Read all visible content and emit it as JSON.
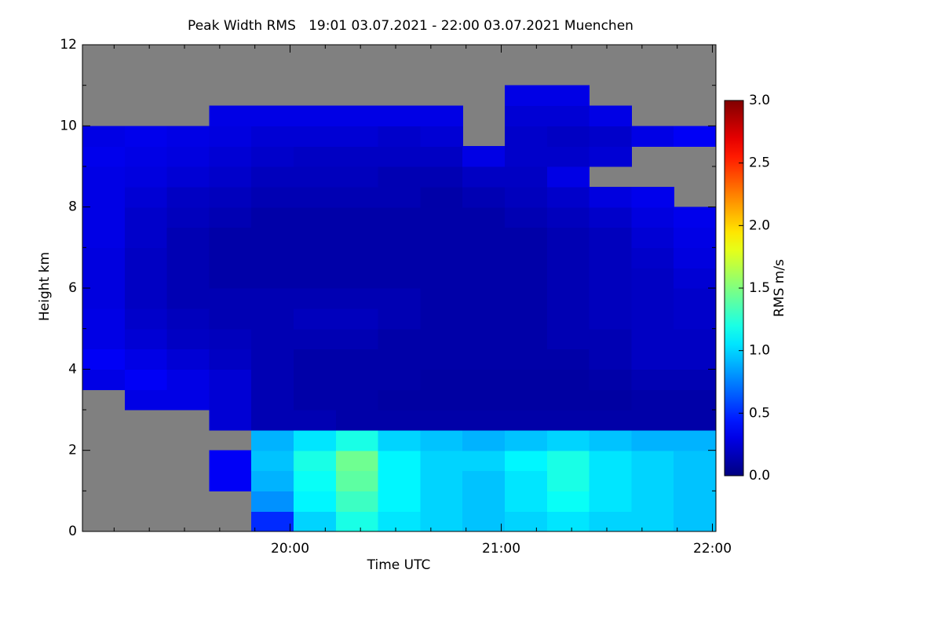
{
  "chart_data": {
    "type": "heatmap",
    "title": "Peak Width RMS   19:01 03.07.2021 - 22:00 03.07.2021 Muenchen",
    "x_label": "Time UTC",
    "y_label": "Height km",
    "colorbar_label": "RMS m/s",
    "colormap": "jet",
    "missing_color": "#808080",
    "xlim": [
      1,
      181
    ],
    "ylim": [
      0,
      12
    ],
    "xticks": [
      {
        "value": 60,
        "label": "20:00"
      },
      {
        "value": 120,
        "label": "21:00"
      },
      {
        "value": 180,
        "label": "22:00"
      }
    ],
    "xminorticks": [
      10,
      20,
      30,
      40,
      50,
      70,
      80,
      90,
      100,
      110,
      130,
      140,
      150,
      160,
      170
    ],
    "yticks": [
      0,
      2,
      4,
      6,
      8,
      10,
      12
    ],
    "yminorticks": [
      1,
      3,
      5,
      7,
      9,
      11
    ],
    "clim": [
      0,
      3
    ],
    "cticks": [
      {
        "value": 0,
        "label": "0.0"
      },
      {
        "value": 0.5,
        "label": "0.5"
      },
      {
        "value": 1,
        "label": "1.0"
      },
      {
        "value": 1.5,
        "label": "1.5"
      },
      {
        "value": 2,
        "label": "2.0"
      },
      {
        "value": 2.5,
        "label": "2.5"
      },
      {
        "value": 3,
        "label": "3.0"
      }
    ],
    "x_edges": [
      1,
      13,
      25,
      37,
      49,
      61,
      73,
      85,
      97,
      109,
      121,
      133,
      145,
      157,
      169,
      181
    ],
    "y_edges": [
      0,
      0.5,
      1,
      1.5,
      2,
      2.5,
      3,
      3.5,
      4,
      4.5,
      5,
      5.5,
      6,
      6.5,
      7,
      7.5,
      8,
      8.5,
      9,
      9.5,
      10,
      10.5,
      11,
      11.5,
      12
    ],
    "z": [
      [
        null,
        null,
        null,
        null,
        0.5,
        1.0,
        1.2,
        1.05,
        1.0,
        0.95,
        1.0,
        1.05,
        1.0,
        1.0,
        0.95
      ],
      [
        null,
        null,
        null,
        null,
        0.8,
        1.1,
        1.3,
        1.1,
        1.0,
        0.95,
        1.05,
        1.15,
        1.05,
        1.0,
        0.95
      ],
      [
        null,
        null,
        null,
        0.35,
        0.9,
        1.15,
        1.4,
        1.1,
        1.0,
        0.95,
        1.05,
        1.2,
        1.05,
        1.0,
        0.95
      ],
      [
        null,
        null,
        null,
        0.35,
        0.95,
        1.2,
        1.45,
        1.1,
        1.0,
        1.0,
        1.1,
        1.2,
        1.05,
        1.0,
        0.95
      ],
      [
        null,
        null,
        null,
        null,
        0.9,
        1.05,
        1.2,
        1.0,
        0.95,
        0.9,
        0.95,
        1.0,
        0.95,
        0.9,
        0.9
      ],
      [
        null,
        null,
        null,
        0.25,
        0.15,
        0.15,
        0.12,
        0.12,
        0.12,
        0.12,
        0.12,
        0.12,
        0.12,
        0.12,
        0.12
      ],
      [
        null,
        0.3,
        0.3,
        0.25,
        0.15,
        0.12,
        0.12,
        0.1,
        0.1,
        0.1,
        0.1,
        0.1,
        0.1,
        0.12,
        0.12
      ],
      [
        0.3,
        0.35,
        0.3,
        0.25,
        0.15,
        0.12,
        0.12,
        0.12,
        0.1,
        0.1,
        0.1,
        0.1,
        0.12,
        0.15,
        0.15
      ],
      [
        0.35,
        0.3,
        0.25,
        0.2,
        0.15,
        0.12,
        0.12,
        0.12,
        0.12,
        0.12,
        0.12,
        0.12,
        0.15,
        0.2,
        0.2
      ],
      [
        0.3,
        0.25,
        0.2,
        0.18,
        0.15,
        0.15,
        0.15,
        0.12,
        0.12,
        0.12,
        0.12,
        0.15,
        0.15,
        0.2,
        0.2
      ],
      [
        0.3,
        0.22,
        0.18,
        0.15,
        0.15,
        0.18,
        0.18,
        0.15,
        0.12,
        0.12,
        0.12,
        0.15,
        0.18,
        0.2,
        0.22
      ],
      [
        0.28,
        0.2,
        0.15,
        0.15,
        0.15,
        0.15,
        0.15,
        0.15,
        0.12,
        0.12,
        0.12,
        0.15,
        0.18,
        0.2,
        0.22
      ],
      [
        0.28,
        0.2,
        0.15,
        0.12,
        0.12,
        0.12,
        0.12,
        0.12,
        0.12,
        0.12,
        0.12,
        0.15,
        0.18,
        0.2,
        0.25
      ],
      [
        0.28,
        0.2,
        0.15,
        0.12,
        0.12,
        0.12,
        0.12,
        0.12,
        0.12,
        0.12,
        0.12,
        0.15,
        0.18,
        0.22,
        0.28
      ],
      [
        0.3,
        0.22,
        0.15,
        0.12,
        0.12,
        0.12,
        0.12,
        0.12,
        0.12,
        0.12,
        0.12,
        0.15,
        0.18,
        0.25,
        0.3
      ],
      [
        0.3,
        0.22,
        0.18,
        0.15,
        0.12,
        0.12,
        0.12,
        0.12,
        0.12,
        0.12,
        0.15,
        0.18,
        0.22,
        0.28,
        0.32
      ],
      [
        0.3,
        0.25,
        0.2,
        0.18,
        0.15,
        0.15,
        0.15,
        0.15,
        0.12,
        0.15,
        0.18,
        0.22,
        0.28,
        0.32,
        null
      ],
      [
        0.3,
        0.28,
        0.25,
        0.22,
        0.18,
        0.18,
        0.18,
        0.15,
        0.15,
        0.2,
        0.2,
        0.3,
        null,
        null,
        null
      ],
      [
        0.32,
        0.3,
        0.28,
        0.25,
        0.22,
        0.2,
        0.2,
        0.2,
        0.2,
        0.3,
        0.22,
        0.22,
        0.25,
        null,
        null
      ],
      [
        0.3,
        0.32,
        0.3,
        0.28,
        0.25,
        0.25,
        0.25,
        0.22,
        0.25,
        null,
        0.22,
        0.2,
        0.22,
        0.3,
        0.35
      ],
      [
        null,
        null,
        null,
        0.3,
        0.3,
        0.3,
        0.3,
        0.3,
        0.3,
        null,
        0.25,
        0.25,
        0.3,
        null,
        null
      ],
      [
        null,
        null,
        null,
        null,
        null,
        null,
        null,
        null,
        null,
        null,
        0.3,
        0.3,
        null,
        null,
        null
      ],
      [
        null,
        null,
        null,
        null,
        null,
        null,
        null,
        null,
        null,
        null,
        null,
        null,
        null,
        null,
        null
      ],
      [
        null,
        null,
        null,
        null,
        null,
        null,
        null,
        null,
        null,
        null,
        null,
        null,
        null,
        null,
        null
      ]
    ]
  }
}
